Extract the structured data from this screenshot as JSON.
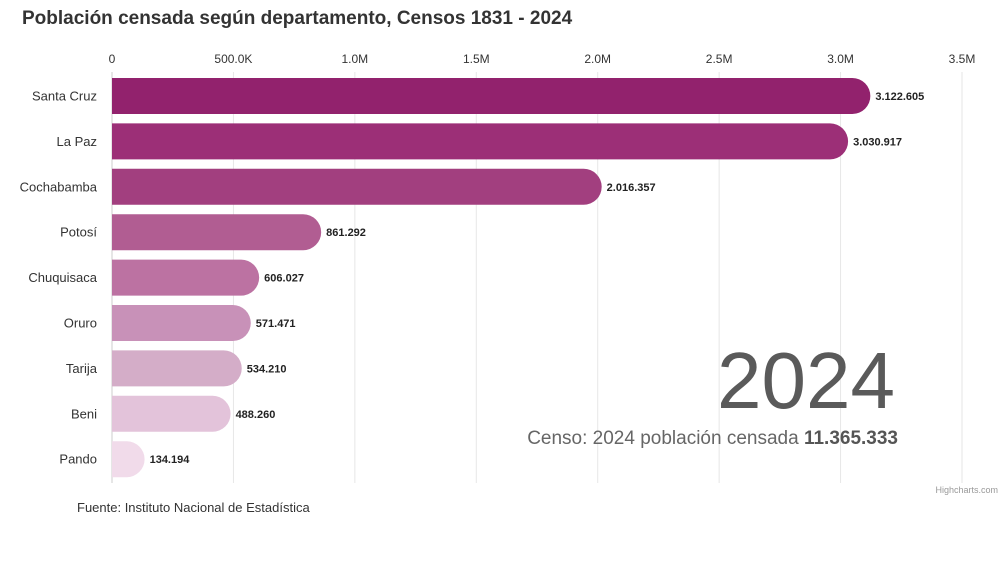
{
  "chart_data": {
    "type": "bar",
    "orientation": "horizontal",
    "title": "Población censada según departamento, Censos 1831 - 2024",
    "categories": [
      "Santa Cruz",
      "La Paz",
      "Cochabamba",
      "Potosí",
      "Chuquisaca",
      "Oruro",
      "Tarija",
      "Beni",
      "Pando"
    ],
    "values": [
      3122605,
      3030917,
      2016357,
      861292,
      606027,
      571471,
      534210,
      488260,
      134194
    ],
    "data_labels": [
      "3.122.605",
      "3.030.917",
      "2.016.357",
      "861.292",
      "606.027",
      "571.471",
      "534.210",
      "488.260",
      "134.194"
    ],
    "xlim": [
      0,
      3500000
    ],
    "x_ticks": [
      0,
      500000,
      1000000,
      1500000,
      2000000,
      2500000,
      3000000,
      3500000
    ],
    "x_tick_labels": [
      "0",
      "500.0K",
      "1.0M",
      "1.5M",
      "2.0M",
      "2.5M",
      "3.0M",
      "3.5M"
    ],
    "x_axis_position": "top",
    "grid": true,
    "colors": [
      "#92226d",
      "#9c2f77",
      "#a23f7f",
      "#b15d92",
      "#bc72a2",
      "#c891b8",
      "#d4adc8",
      "#e3c3da",
      "#f1dbea"
    ],
    "annotation": {
      "year": "2024",
      "subtitle_prefix": "Censo: 2024 población censada ",
      "subtitle_total": "11.365.333"
    },
    "credits": "Highcharts.com",
    "source": "Fuente: Instituto Nacional de Estadística"
  }
}
